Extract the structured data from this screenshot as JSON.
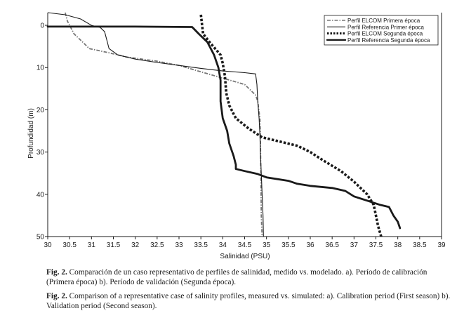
{
  "chart_data": {
    "type": "line",
    "xlabel": "Salinidad (PSU)",
    "ylabel": "Profundidad (m)",
    "xlim": [
      30,
      39
    ],
    "ylim": [
      -3,
      50
    ],
    "y_inverted": true,
    "x_ticks": [
      "30",
      "30.5",
      "31",
      "31.5",
      "32",
      "32.5",
      "33",
      "33.5",
      "34",
      "34.5",
      "35",
      "35.5",
      "36",
      "36.5",
      "37",
      "37.5",
      "38",
      "38.5",
      "39"
    ],
    "y_ticks": [
      "0",
      "10",
      "20",
      "30",
      "40",
      "50"
    ],
    "legend_position": "top-right",
    "series": [
      {
        "name": "Perfil ELCOM Primera época",
        "style": "dash-dot",
        "color": "#777777",
        "points": [
          [
            30.4,
            -3
          ],
          [
            30.45,
            -1
          ],
          [
            30.6,
            2
          ],
          [
            30.8,
            4
          ],
          [
            30.95,
            5.5
          ],
          [
            31.4,
            6.5
          ],
          [
            31.8,
            7.5
          ],
          [
            32.5,
            8.5
          ],
          [
            33.0,
            9.5
          ],
          [
            33.5,
            11
          ],
          [
            34.0,
            12.5
          ],
          [
            34.5,
            14
          ],
          [
            34.65,
            15.5
          ],
          [
            34.75,
            16.5
          ],
          [
            34.8,
            18
          ],
          [
            34.85,
            22
          ],
          [
            34.86,
            26
          ],
          [
            34.87,
            35
          ],
          [
            34.88,
            45
          ],
          [
            34.9,
            50
          ]
        ]
      },
      {
        "name": "Perfil Referencia Primer época",
        "style": "solid",
        "color": "#1a1a1a",
        "points": [
          [
            30.0,
            -3
          ],
          [
            30.4,
            -2.5
          ],
          [
            30.75,
            -1.5
          ],
          [
            31.0,
            0
          ],
          [
            31.2,
            0.5
          ],
          [
            31.3,
            1.5
          ],
          [
            31.35,
            3.5
          ],
          [
            31.4,
            5.5
          ],
          [
            31.6,
            7
          ],
          [
            32.0,
            8
          ],
          [
            32.5,
            8.8
          ],
          [
            33.0,
            9.5
          ],
          [
            33.5,
            10.2
          ],
          [
            34.0,
            10.8
          ],
          [
            34.5,
            11.2
          ],
          [
            34.75,
            11.5
          ],
          [
            34.78,
            14
          ],
          [
            34.8,
            18
          ],
          [
            34.83,
            22
          ],
          [
            34.85,
            26
          ],
          [
            34.86,
            30
          ],
          [
            34.88,
            35
          ],
          [
            34.9,
            40
          ],
          [
            34.92,
            45
          ],
          [
            34.93,
            50
          ]
        ]
      },
      {
        "name": "Perfil ELCOM Segunda época",
        "style": "dotted",
        "color": "#1a1a1a",
        "points": [
          [
            33.5,
            -2.5
          ],
          [
            33.55,
            2
          ],
          [
            33.7,
            4
          ],
          [
            33.95,
            7
          ],
          [
            34.0,
            9
          ],
          [
            34.05,
            12
          ],
          [
            34.08,
            16
          ],
          [
            34.15,
            19
          ],
          [
            34.3,
            22
          ],
          [
            34.6,
            24.5
          ],
          [
            34.9,
            26.5
          ],
          [
            35.3,
            27.5
          ],
          [
            35.7,
            28.5
          ],
          [
            36.0,
            30
          ],
          [
            36.3,
            32
          ],
          [
            36.7,
            34.5
          ],
          [
            37.0,
            37
          ],
          [
            37.3,
            40
          ],
          [
            37.45,
            42.5
          ],
          [
            37.5,
            45
          ],
          [
            37.55,
            47.5
          ],
          [
            37.62,
            50
          ]
        ]
      },
      {
        "name": "Perfil Referencia Segunda época",
        "style": "thick",
        "color": "#1a1a1a",
        "points": [
          [
            30.0,
            0.3
          ],
          [
            31.0,
            0.3
          ],
          [
            32.0,
            0.3
          ],
          [
            33.3,
            0.4
          ],
          [
            33.45,
            2
          ],
          [
            33.65,
            4
          ],
          [
            33.8,
            7
          ],
          [
            33.9,
            10
          ],
          [
            33.95,
            13
          ],
          [
            33.95,
            18
          ],
          [
            34.0,
            22
          ],
          [
            34.1,
            25
          ],
          [
            34.15,
            28
          ],
          [
            34.25,
            31
          ],
          [
            34.3,
            33
          ],
          [
            34.3,
            34
          ],
          [
            34.5,
            34.5
          ],
          [
            34.8,
            35.2
          ],
          [
            35.0,
            36
          ],
          [
            35.5,
            36.8
          ],
          [
            35.7,
            37.5
          ],
          [
            36.0,
            38
          ],
          [
            36.5,
            38.5
          ],
          [
            36.8,
            39.2
          ],
          [
            37.0,
            40.5
          ],
          [
            37.3,
            41.5
          ],
          [
            37.6,
            42.5
          ],
          [
            37.8,
            43
          ],
          [
            37.9,
            45
          ],
          [
            38.0,
            46.5
          ],
          [
            38.05,
            48
          ]
        ]
      }
    ]
  },
  "captions": {
    "es_label": "Fig. 2.",
    "es_text": " Comparación de un caso representativo de perfiles de salinidad, medido vs. modelado. a). Período de calibración (Primera época) b). Período de validación (Segunda época).",
    "en_label": "Fig. 2.",
    "en_text": " Comparison of a representative case of salinity profiles, measured vs. simulated: a). Calibration period (First season) b). Validation period (Second season)."
  }
}
